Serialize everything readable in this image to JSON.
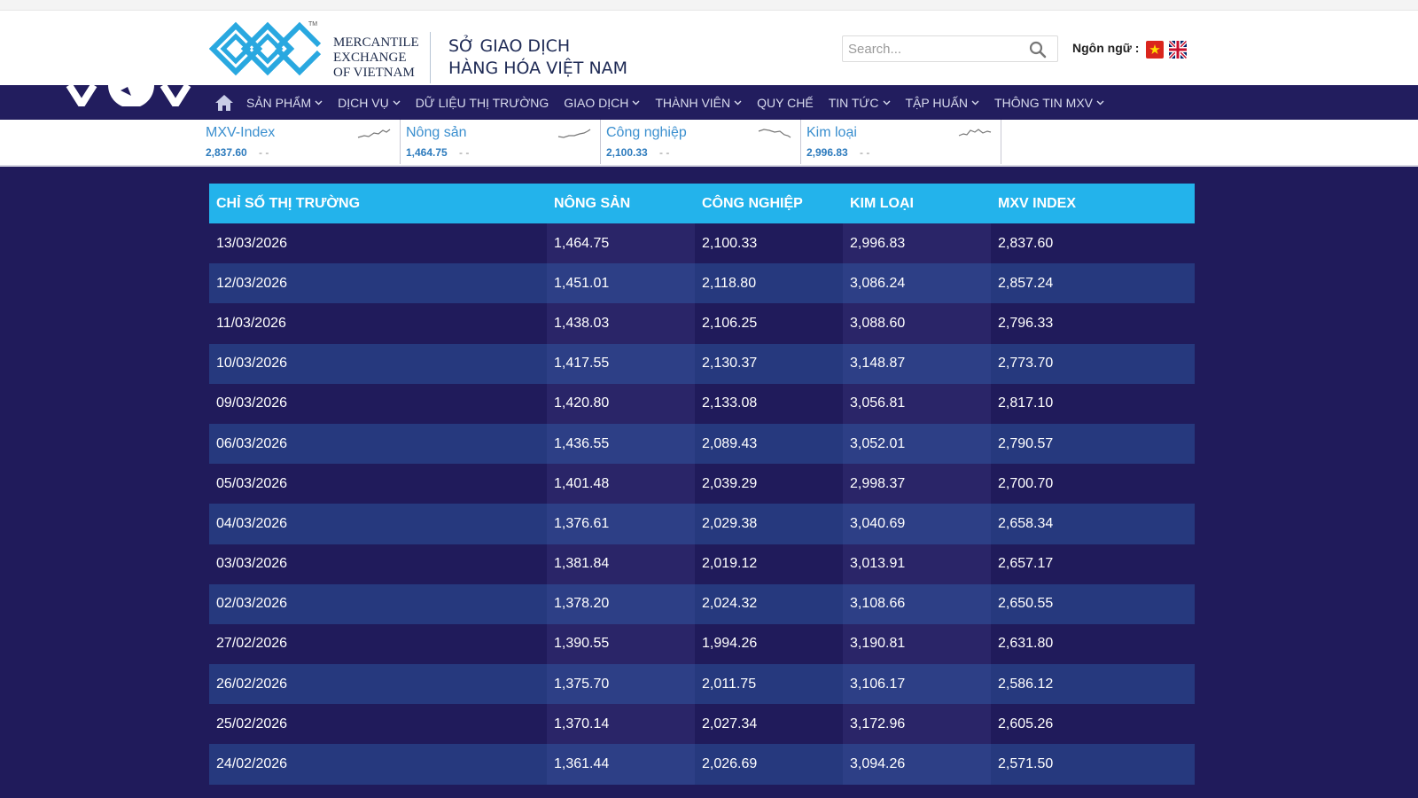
{
  "header": {
    "logo_en_lines": [
      "MERCANTILE",
      "EXCHANGE",
      "OF VIETNAM"
    ],
    "logo_tm": "TM",
    "logo_vn_lines": [
      "SỞ GIAO DỊCH",
      "HÀNG HÓA VIỆT NAM"
    ],
    "search_placeholder": "Search...",
    "language_label": "Ngôn ngữ :"
  },
  "nav": {
    "items": [
      {
        "label": "SẢN PHẨM",
        "dropdown": true
      },
      {
        "label": "DỊCH VỤ",
        "dropdown": true
      },
      {
        "label": "DỮ LIỆU THỊ TRƯỜNG",
        "dropdown": false
      },
      {
        "label": "GIAO DỊCH",
        "dropdown": true
      },
      {
        "label": "THÀNH VIÊN",
        "dropdown": true
      },
      {
        "label": "QUY CHẾ",
        "dropdown": false
      },
      {
        "label": "TIN TỨC",
        "dropdown": true
      },
      {
        "label": "TẬP HUẤN",
        "dropdown": true
      },
      {
        "label": "THÔNG TIN MXV",
        "dropdown": true
      }
    ]
  },
  "ticker": [
    {
      "name": "MXV-Index",
      "value": "2,837.60",
      "change": "- -"
    },
    {
      "name": "Nông sản",
      "value": "1,464.75",
      "change": "- -"
    },
    {
      "name": "Công nghiệp",
      "value": "2,100.33",
      "change": "- -"
    },
    {
      "name": "Kim loại",
      "value": "2,996.83",
      "change": "- -"
    }
  ],
  "table": {
    "headers": [
      "CHỈ SỐ THỊ TRƯỜNG",
      "NÔNG SẢN",
      "CÔNG NGHIỆP",
      "KIM LOẠI",
      "MXV INDEX"
    ],
    "rows": [
      [
        "13/03/2026",
        "1,464.75",
        "2,100.33",
        "2,996.83",
        "2,837.60"
      ],
      [
        "12/03/2026",
        "1,451.01",
        "2,118.80",
        "3,086.24",
        "2,857.24"
      ],
      [
        "11/03/2026",
        "1,438.03",
        "2,106.25",
        "3,088.60",
        "2,796.33"
      ],
      [
        "10/03/2026",
        "1,417.55",
        "2,130.37",
        "3,148.87",
        "2,773.70"
      ],
      [
        "09/03/2026",
        "1,420.80",
        "2,133.08",
        "3,056.81",
        "2,817.10"
      ],
      [
        "06/03/2026",
        "1,436.55",
        "2,089.43",
        "3,052.01",
        "2,790.57"
      ],
      [
        "05/03/2026",
        "1,401.48",
        "2,039.29",
        "2,998.37",
        "2,700.70"
      ],
      [
        "04/03/2026",
        "1,376.61",
        "2,029.38",
        "3,040.69",
        "2,658.34"
      ],
      [
        "03/03/2026",
        "1,381.84",
        "2,019.12",
        "3,013.91",
        "2,657.17"
      ],
      [
        "02/03/2026",
        "1,378.20",
        "2,024.32",
        "3,108.66",
        "2,650.55"
      ],
      [
        "27/02/2026",
        "1,390.55",
        "1,994.26",
        "3,190.81",
        "2,631.80"
      ],
      [
        "26/02/2026",
        "1,375.70",
        "2,011.75",
        "3,106.17",
        "2,586.12"
      ],
      [
        "25/02/2026",
        "1,370.14",
        "2,027.34",
        "3,172.96",
        "2,605.26"
      ],
      [
        "24/02/2026",
        "1,361.44",
        "2,026.69",
        "3,094.26",
        "2,571.50"
      ]
    ]
  },
  "colors": {
    "header_bg": "#ffffff",
    "nav_bg": "#221d5e",
    "table_header": "#23b3eb",
    "row_odd": "#201b5b",
    "row_even": "#26397e",
    "ticker_text": "#3a8fcf",
    "logo_blue": "#29a8e0"
  },
  "icons": {
    "home": "home-icon",
    "search": "search-icon",
    "dropdown": "chevron-down-icon",
    "flag_vn": "vietnam-flag-icon",
    "flag_uk": "uk-flag-icon",
    "sparkline": "sparkline-icon"
  }
}
